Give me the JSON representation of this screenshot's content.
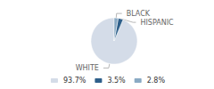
{
  "chart_data": {
    "type": "pie",
    "categories": [
      "WHITE",
      "HISPANIC",
      "BLACK"
    ],
    "values": [
      93.7,
      3.5,
      2.8
    ],
    "value_labels": [
      "93.7%",
      "3.5%",
      "2.8%"
    ],
    "colors": [
      "#d4dce8",
      "#2e5f8a",
      "#8aaac4"
    ],
    "legend": "bottom"
  }
}
